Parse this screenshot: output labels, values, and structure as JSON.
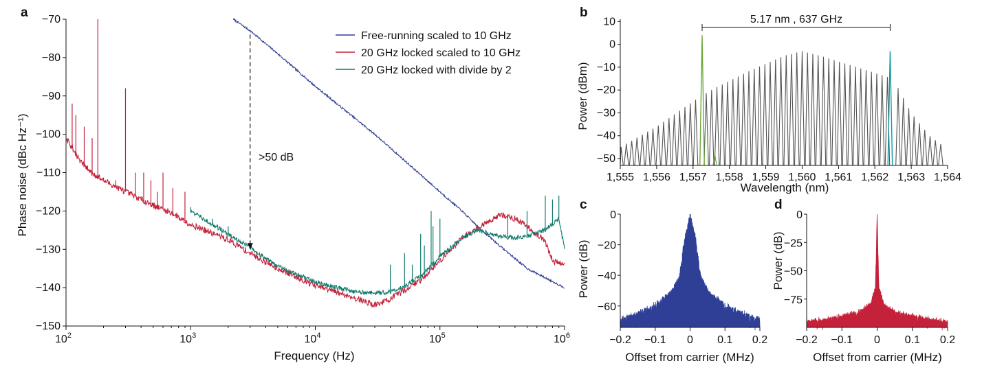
{
  "colors": {
    "blue": "#2f3f96",
    "red": "#c4213a",
    "teal": "#127a6e",
    "gray": "#555555",
    "green": "#6aa83a",
    "cyan": "#149aa0"
  },
  "chart_data": [
    {
      "panel": "a",
      "type": "line",
      "xlabel": "Frequency (Hz)",
      "ylabel": "Phase noise (dBc Hz⁻¹)",
      "xscale": "log",
      "xlim": [
        100,
        1000000
      ],
      "ylim": [
        -150,
        -70
      ],
      "xticks": [
        {
          "v": 100,
          "b": "10",
          "e": "2"
        },
        {
          "v": 1000,
          "b": "10",
          "e": "3"
        },
        {
          "v": 10000,
          "b": "10",
          "e": "4"
        },
        {
          "v": 100000,
          "b": "10",
          "e": "5"
        },
        {
          "v": 1000000,
          "b": "10",
          "e": "6"
        }
      ],
      "yticks": [
        -70,
        -80,
        -90,
        -100,
        -110,
        -120,
        -130,
        -140,
        -150
      ],
      "ytick_labels": [
        "−70",
        "−80",
        "−90",
        "−100",
        "−110",
        "−120",
        "−130",
        "−140",
        "−150"
      ],
      "legend_position": "top-right",
      "annotation": {
        "text": ">50 dB",
        "x": 3000,
        "y_top": -74,
        "y_bottom": -130
      },
      "series": [
        {
          "name": "Free-running scaled to 10 GHz",
          "color": "blue",
          "x": [
            2200,
            3000,
            5000,
            10000,
            30000,
            100000,
            150000,
            200000,
            300000,
            500000,
            1000000
          ],
          "y": [
            -70,
            -73,
            -79,
            -87.5,
            -100,
            -115,
            -120,
            -124,
            -129,
            -135,
            -140
          ]
        },
        {
          "name": "20 GHz locked scaled to 10 GHz",
          "color": "red",
          "x": [
            100,
            130,
            160,
            200,
            300,
            500,
            700,
            1000,
            2000,
            3000,
            5000,
            8000,
            10000,
            20000,
            30000,
            40000,
            50000,
            70000,
            100000,
            150000,
            200000,
            300000,
            400000,
            500000,
            700000,
            800000,
            1000000
          ],
          "y": [
            -101,
            -107,
            -110,
            -112,
            -115,
            -118.5,
            -120.5,
            -123.5,
            -127.5,
            -131,
            -135,
            -138,
            -139.5,
            -142.5,
            -144.5,
            -143,
            -141,
            -138,
            -133,
            -127,
            -124.5,
            -121,
            -122,
            -124,
            -128,
            -133,
            -134
          ],
          "spikes": [
            {
              "x": 112,
              "y": -92
            },
            {
              "x": 120,
              "y": -95
            },
            {
              "x": 140,
              "y": -98
            },
            {
              "x": 162,
              "y": -101
            },
            {
              "x": 180,
              "y": -70
            },
            {
              "x": 250,
              "y": -112
            },
            {
              "x": 300,
              "y": -88
            },
            {
              "x": 360,
              "y": -110
            },
            {
              "x": 420,
              "y": -110
            },
            {
              "x": 480,
              "y": -112
            },
            {
              "x": 540,
              "y": -115
            },
            {
              "x": 600,
              "y": -110
            },
            {
              "x": 720,
              "y": -114
            },
            {
              "x": 900,
              "y": -115
            }
          ]
        },
        {
          "name": "20 GHz locked with divide by 2",
          "color": "teal",
          "x": [
            1000,
            2000,
            3000,
            5000,
            10000,
            20000,
            30000,
            40000,
            50000,
            70000,
            100000,
            150000,
            200000,
            300000,
            400000,
            500000,
            700000,
            900000,
            1000000
          ],
          "y": [
            -120,
            -126,
            -129.5,
            -134.5,
            -138.5,
            -141,
            -141.5,
            -141,
            -140,
            -137,
            -132,
            -127,
            -125,
            -126.5,
            -127,
            -126.5,
            -125,
            -122,
            -130
          ],
          "spikes": [
            {
              "x": 1000,
              "y": -119
            },
            {
              "x": 1200,
              "y": -121
            },
            {
              "x": 1500,
              "y": -122
            },
            {
              "x": 2000,
              "y": -124
            },
            {
              "x": 3000,
              "y": -128
            },
            {
              "x": 40000,
              "y": -134
            },
            {
              "x": 52000,
              "y": -131
            },
            {
              "x": 60000,
              "y": -134
            },
            {
              "x": 70000,
              "y": -126
            },
            {
              "x": 75000,
              "y": -129
            },
            {
              "x": 85000,
              "y": -120
            },
            {
              "x": 88000,
              "y": -124
            },
            {
              "x": 100000,
              "y": -122
            },
            {
              "x": 350000,
              "y": -121
            },
            {
              "x": 500000,
              "y": -120
            },
            {
              "x": 700000,
              "y": -116
            },
            {
              "x": 800000,
              "y": -117
            },
            {
              "x": 900000,
              "y": -116
            }
          ]
        }
      ]
    },
    {
      "panel": "b",
      "type": "line",
      "xlabel": "Wavelength (nm)",
      "ylabel": "Power (dBm)",
      "xlim": [
        1555,
        1564
      ],
      "ylim": [
        -53,
        11
      ],
      "xticks": [
        1555,
        1556,
        1557,
        1558,
        1559,
        1560,
        1561,
        1562,
        1563,
        1564
      ],
      "xtick_labels": [
        "1,555",
        "1,556",
        "1,557",
        "1,558",
        "1,559",
        "1,560",
        "1,561",
        "1,562",
        "1,563",
        "1,564"
      ],
      "yticks": [
        10,
        0,
        -10,
        -20,
        -30,
        -40,
        -50
      ],
      "ytick_labels": [
        "10",
        "0",
        "−10",
        "−20",
        "−30",
        "−40",
        "−50"
      ],
      "annotation": {
        "text": "5.17 nm , 637 GHz",
        "x1": 1557.25,
        "x2": 1562.42
      },
      "comb": {
        "start": 1555.02,
        "spacing": 0.1465,
        "count": 61,
        "floor": -53
      },
      "comb_envelope": {
        "x": [
          1555.0,
          1556.0,
          1557.0,
          1557.5,
          1558.5,
          1559.5,
          1560.0,
          1560.5,
          1561.5,
          1562.5,
          1563.0,
          1563.5,
          1564.0
        ],
        "y": [
          -45,
          -36,
          -25,
          -20,
          -12,
          -5,
          -3,
          -5,
          -10,
          -15,
          -30,
          -40,
          -46
        ]
      },
      "highlighted_lines": [
        {
          "x": 1557.25,
          "y": 4,
          "color": "green"
        },
        {
          "x": 1562.42,
          "y": -3,
          "color": "cyan"
        }
      ]
    },
    {
      "panel": "c",
      "type": "area",
      "xlabel": "Offset from carrier (MHz)",
      "ylabel": "Power (dB)",
      "color": "blue",
      "xlim": [
        -0.2,
        0.2
      ],
      "ylim": [
        -74,
        0
      ],
      "xticks": [
        -0.2,
        -0.1,
        0,
        0.1,
        0.2
      ],
      "xtick_labels": [
        "−0.2",
        "−0.1",
        "0",
        "0.1",
        "0.2"
      ],
      "yticks": [
        0,
        -20,
        -40,
        -60
      ],
      "ytick_labels": [
        "0",
        "−20",
        "−40",
        "−60"
      ],
      "envelope": {
        "x": [
          -0.2,
          -0.15,
          -0.1,
          -0.05,
          -0.03,
          -0.015,
          0.0,
          0.015,
          0.03,
          0.05,
          0.1,
          0.15,
          0.2
        ],
        "y": [
          -69,
          -65,
          -60,
          -50,
          -40,
          -15,
          0,
          -15,
          -40,
          -50,
          -60,
          -65,
          -69
        ]
      }
    },
    {
      "panel": "d",
      "type": "area",
      "xlabel": "Offset from carrier (MHz)",
      "ylabel": "Power (dB)",
      "color": "red",
      "xlim": [
        -0.2,
        0.2
      ],
      "ylim": [
        -100,
        0
      ],
      "xticks": [
        -0.2,
        -0.1,
        0,
        0.1,
        0.2
      ],
      "xtick_labels": [
        "−0.2",
        "−0.1",
        "0",
        "0.1",
        "0.2"
      ],
      "yticks": [
        0,
        -25,
        -50,
        -75
      ],
      "ytick_labels": [
        "0",
        "−25",
        "−50",
        "−75"
      ],
      "envelope": {
        "x": [
          -0.2,
          -0.15,
          -0.1,
          -0.05,
          -0.02,
          -0.005,
          0.0,
          0.005,
          0.02,
          0.05,
          0.1,
          0.15,
          0.2
        ],
        "y": [
          -95,
          -93,
          -90,
          -86,
          -80,
          -65,
          0,
          -65,
          -80,
          -86,
          -90,
          -93,
          -95
        ]
      }
    }
  ]
}
